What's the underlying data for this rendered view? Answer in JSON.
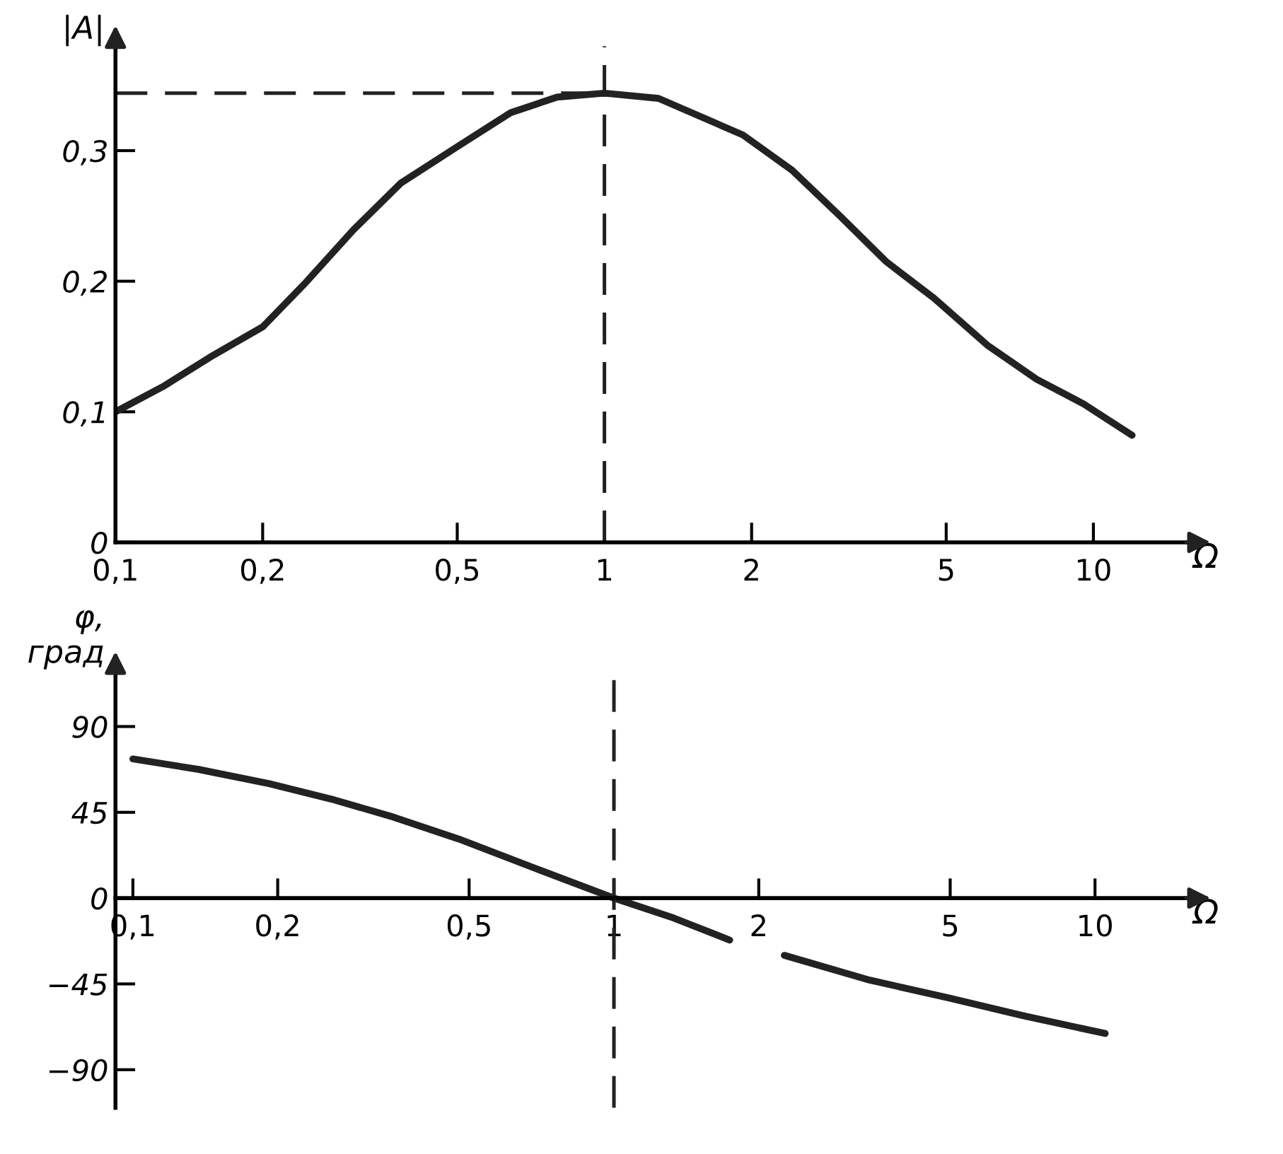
{
  "chart_data": [
    {
      "type": "line",
      "ylabel": "|A|",
      "xlabel": "Ω",
      "log": "x",
      "xlim": [
        0.1,
        16
      ],
      "ylim": [
        0,
        0.38
      ],
      "xticks": [
        {
          "value": 0.1,
          "label": "0,1"
        },
        {
          "value": 0.2,
          "label": "0,2"
        },
        {
          "value": 0.5,
          "label": "0,5"
        },
        1,
        2,
        5,
        10
      ],
      "yticks": [
        0,
        {
          "value": 0.1,
          "label": "0,1"
        },
        {
          "value": 0.2,
          "label": "0,2"
        },
        {
          "value": 0.3,
          "label": "0,3"
        }
      ],
      "series": [
        {
          "color": "#222222",
          "x": [
            0.1,
            0.126,
            0.158,
            0.2,
            0.245,
            0.306,
            0.383,
            0.5,
            0.643,
            0.8,
            1,
            1.29,
            1.92,
            2.42,
            3.03,
            3.77,
            4.72,
            6.07,
            7.65,
            9.55,
            12
          ],
          "values": [
            0.1,
            0.12,
            0.143,
            0.165,
            0.199,
            0.239,
            0.275,
            0.303,
            0.329,
            0.341,
            0.344,
            0.34,
            0.312,
            0.285,
            0.25,
            0.215,
            0.187,
            0.151,
            0.125,
            0.106,
            0.082
          ]
        }
      ],
      "ref_lines": [
        {
          "axis": "y",
          "value": 0.344,
          "line_style": "dashed"
        },
        {
          "axis": "x",
          "value": 1,
          "line_style": "dashed"
        }
      ]
    },
    {
      "type": "line",
      "ylabel": "φ,\nград",
      "xlabel": "Ω",
      "log": "x",
      "xlim": [
        0.092,
        16
      ],
      "ylim": [
        -110,
        120
      ],
      "xticks": [
        {
          "value": 0.1,
          "label": "0,1"
        },
        {
          "value": 0.2,
          "label": "0,2"
        },
        {
          "value": 0.5,
          "label": "0,5"
        },
        1,
        2,
        5,
        10
      ],
      "yticks": [
        {
          "value": -90,
          "label": "−90"
        },
        {
          "value": -45,
          "label": "−45"
        },
        0,
        45,
        90
      ],
      "series": [
        {
          "color": "#222222",
          "x": [
            0.1,
            0.137,
            0.192,
            0.258,
            0.348,
            0.476,
            0.68,
            1,
            1.33,
            1.74,
            2,
            2.26,
            3.4,
            5,
            7.1,
            10.5
          ],
          "values": [
            73,
            67.5,
            60,
            52,
            42.5,
            31,
            16,
            0,
            -10.4,
            -22,
            null,
            -30,
            -43,
            -52.5,
            -61.7,
            -71
          ]
        }
      ],
      "ref_lines": [
        {
          "axis": "x",
          "value": 1,
          "line_style": "dashed"
        }
      ]
    }
  ]
}
